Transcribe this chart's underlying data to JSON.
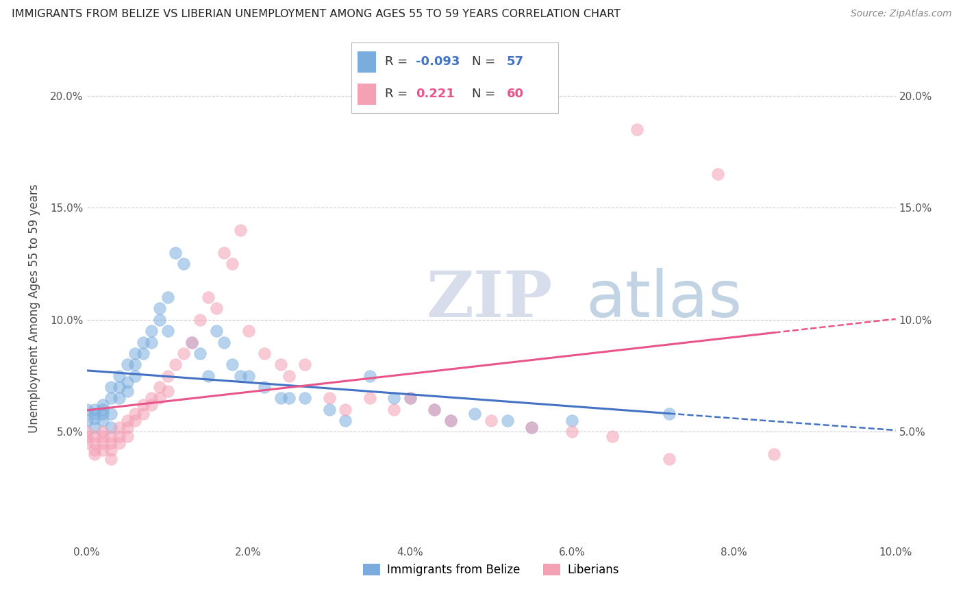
{
  "title": "IMMIGRANTS FROM BELIZE VS LIBERIAN UNEMPLOYMENT AMONG AGES 55 TO 59 YEARS CORRELATION CHART",
  "source": "Source: ZipAtlas.com",
  "ylabel": "Unemployment Among Ages 55 to 59 years",
  "xlabel_belize": "Immigrants from Belize",
  "xlabel_liberia": "Liberians",
  "r_belize": -0.093,
  "n_belize": 57,
  "r_liberia": 0.221,
  "n_liberia": 60,
  "xlim": [
    0.0,
    0.1
  ],
  "ylim": [
    0.0,
    0.21
  ],
  "xticks": [
    0.0,
    0.02,
    0.04,
    0.06,
    0.08,
    0.1
  ],
  "yticks": [
    0.0,
    0.05,
    0.1,
    0.15,
    0.2
  ],
  "xtick_labels": [
    "0.0%",
    "2.0%",
    "4.0%",
    "6.0%",
    "8.0%",
    "10.0%"
  ],
  "ytick_labels": [
    "",
    "5.0%",
    "10.0%",
    "15.0%",
    "20.0%"
  ],
  "color_belize": "#7aadde",
  "color_liberia": "#f4a0b5",
  "line_belize": "#4472c4",
  "line_liberia": "#e8558a",
  "belize_x": [
    0.0,
    0.0,
    0.001,
    0.001,
    0.001,
    0.001,
    0.002,
    0.002,
    0.002,
    0.002,
    0.003,
    0.003,
    0.003,
    0.003,
    0.004,
    0.004,
    0.004,
    0.005,
    0.005,
    0.005,
    0.006,
    0.006,
    0.006,
    0.007,
    0.007,
    0.008,
    0.008,
    0.009,
    0.009,
    0.01,
    0.01,
    0.011,
    0.012,
    0.013,
    0.014,
    0.015,
    0.016,
    0.017,
    0.018,
    0.019,
    0.02,
    0.022,
    0.024,
    0.025,
    0.027,
    0.03,
    0.032,
    0.035,
    0.038,
    0.04,
    0.043,
    0.045,
    0.048,
    0.052,
    0.055,
    0.06,
    0.072
  ],
  "belize_y": [
    0.06,
    0.055,
    0.06,
    0.058,
    0.056,
    0.052,
    0.062,
    0.06,
    0.058,
    0.055,
    0.07,
    0.065,
    0.058,
    0.052,
    0.075,
    0.07,
    0.065,
    0.08,
    0.072,
    0.068,
    0.085,
    0.08,
    0.075,
    0.09,
    0.085,
    0.095,
    0.09,
    0.105,
    0.1,
    0.11,
    0.095,
    0.13,
    0.125,
    0.09,
    0.085,
    0.075,
    0.095,
    0.09,
    0.08,
    0.075,
    0.075,
    0.07,
    0.065,
    0.065,
    0.065,
    0.06,
    0.055,
    0.075,
    0.065,
    0.065,
    0.06,
    0.055,
    0.058,
    0.055,
    0.052,
    0.055,
    0.058
  ],
  "liberia_x": [
    0.0,
    0.0,
    0.0,
    0.001,
    0.001,
    0.001,
    0.001,
    0.002,
    0.002,
    0.002,
    0.002,
    0.003,
    0.003,
    0.003,
    0.003,
    0.004,
    0.004,
    0.004,
    0.005,
    0.005,
    0.005,
    0.006,
    0.006,
    0.007,
    0.007,
    0.008,
    0.008,
    0.009,
    0.009,
    0.01,
    0.01,
    0.011,
    0.012,
    0.013,
    0.014,
    0.015,
    0.016,
    0.017,
    0.018,
    0.019,
    0.02,
    0.022,
    0.024,
    0.025,
    0.027,
    0.03,
    0.032,
    0.035,
    0.038,
    0.04,
    0.043,
    0.045,
    0.05,
    0.055,
    0.06,
    0.065,
    0.068,
    0.072,
    0.078,
    0.085
  ],
  "liberia_y": [
    0.05,
    0.048,
    0.045,
    0.048,
    0.045,
    0.042,
    0.04,
    0.05,
    0.048,
    0.045,
    0.042,
    0.048,
    0.045,
    0.042,
    0.038,
    0.052,
    0.048,
    0.045,
    0.055,
    0.052,
    0.048,
    0.058,
    0.055,
    0.062,
    0.058,
    0.065,
    0.062,
    0.07,
    0.065,
    0.075,
    0.068,
    0.08,
    0.085,
    0.09,
    0.1,
    0.11,
    0.105,
    0.13,
    0.125,
    0.14,
    0.095,
    0.085,
    0.08,
    0.075,
    0.08,
    0.065,
    0.06,
    0.065,
    0.06,
    0.065,
    0.06,
    0.055,
    0.055,
    0.052,
    0.05,
    0.048,
    0.185,
    0.038,
    0.165,
    0.04
  ]
}
